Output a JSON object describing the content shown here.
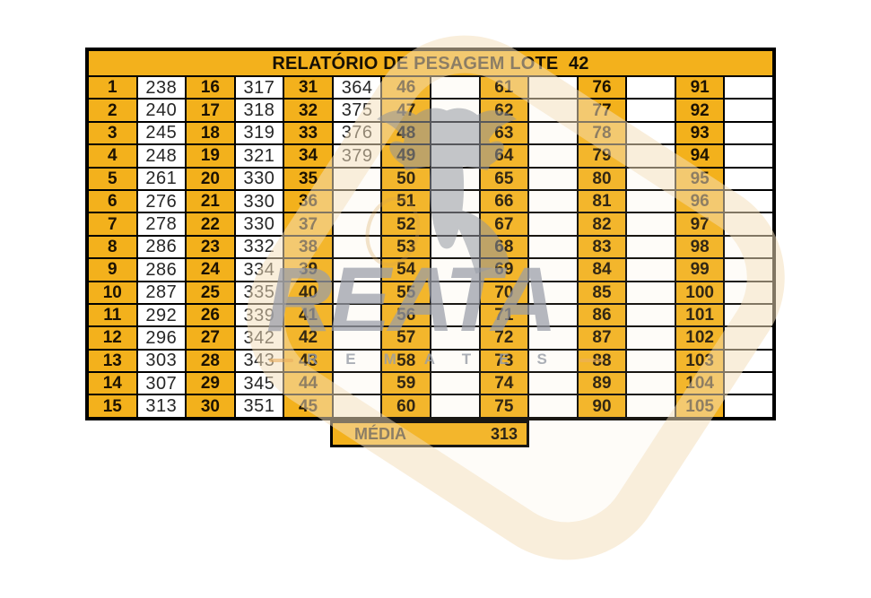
{
  "header": {
    "title": "RELATÓRIO DE PESAGEM LOTE  42"
  },
  "table": {
    "groups": [
      {
        "indices": [
          "1",
          "2",
          "3",
          "4",
          "5",
          "6",
          "7",
          "8",
          "9",
          "10",
          "11",
          "12",
          "13",
          "14",
          "15"
        ],
        "values": [
          "238",
          "240",
          "245",
          "248",
          "261",
          "276",
          "278",
          "286",
          "286",
          "287",
          "292",
          "296",
          "303",
          "307",
          "313"
        ]
      },
      {
        "indices": [
          "16",
          "17",
          "18",
          "19",
          "20",
          "21",
          "22",
          "23",
          "24",
          "25",
          "26",
          "27",
          "28",
          "29",
          "30"
        ],
        "values": [
          "317",
          "318",
          "319",
          "321",
          "330",
          "330",
          "330",
          "332",
          "334",
          "335",
          "339",
          "342",
          "343",
          "345",
          "351"
        ]
      },
      {
        "indices": [
          "31",
          "32",
          "33",
          "34",
          "35",
          "36",
          "37",
          "38",
          "39",
          "40",
          "41",
          "42",
          "43",
          "44",
          "45"
        ],
        "values": [
          "364",
          "375",
          "376",
          "379",
          "",
          "",
          "",
          "",
          "",
          "",
          "",
          "",
          "",
          "",
          ""
        ]
      },
      {
        "indices": [
          "46",
          "47",
          "48",
          "49",
          "50",
          "51",
          "52",
          "53",
          "54",
          "55",
          "56",
          "57",
          "58",
          "59",
          "60"
        ],
        "values": [
          "",
          "",
          "",
          "",
          "",
          "",
          "",
          "",
          "",
          "",
          "",
          "",
          "",
          "",
          ""
        ]
      },
      {
        "indices": [
          "61",
          "62",
          "63",
          "64",
          "65",
          "66",
          "67",
          "68",
          "69",
          "70",
          "71",
          "72",
          "73",
          "74",
          "75"
        ],
        "values": [
          "",
          "",
          "",
          "",
          "",
          "",
          "",
          "",
          "",
          "",
          "",
          "",
          "",
          "",
          ""
        ]
      },
      {
        "indices": [
          "76",
          "77",
          "78",
          "79",
          "80",
          "81",
          "82",
          "83",
          "84",
          "85",
          "86",
          "87",
          "88",
          "89",
          "90"
        ],
        "values": [
          "",
          "",
          "",
          "",
          "",
          "",
          "",
          "",
          "",
          "",
          "",
          "",
          "",
          "",
          ""
        ]
      },
      {
        "indices": [
          "91",
          "92",
          "93",
          "94",
          "95",
          "96",
          "97",
          "98",
          "99",
          "100",
          "101",
          "102",
          "103",
          "104",
          "105"
        ],
        "values": [
          "",
          "",
          "",
          "",
          "",
          "",
          "",
          "",
          "",
          "",
          "",
          "",
          "",
          "",
          ""
        ]
      }
    ]
  },
  "summary": {
    "label": "MÉDIA",
    "value": "313"
  },
  "watermark": {
    "brand": "REATA",
    "subbrand": "REMATES"
  },
  "colors": {
    "accent": "#F3B11C",
    "grid_black": "#000000",
    "index_text": "#1C1202",
    "value_text": "#262626",
    "watermark_gray": "#989DA7",
    "watermark_cream": "#F2DDBC"
  }
}
